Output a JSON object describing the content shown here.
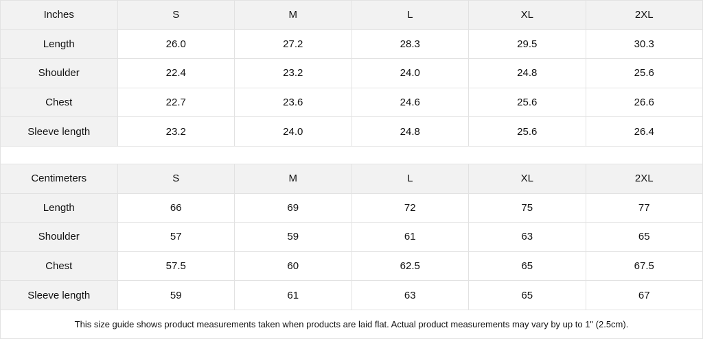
{
  "inches": {
    "header": [
      "Inches",
      "S",
      "M",
      "L",
      "XL",
      "2XL"
    ],
    "rows": [
      [
        "Length",
        "26.0",
        "27.2",
        "28.3",
        "29.5",
        "30.3"
      ],
      [
        "Shoulder",
        "22.4",
        "23.2",
        "24.0",
        "24.8",
        "25.6"
      ],
      [
        "Chest",
        "22.7",
        "23.6",
        "24.6",
        "25.6",
        "26.6"
      ],
      [
        "Sleeve length",
        "23.2",
        "24.0",
        "24.8",
        "25.6",
        "26.4"
      ]
    ]
  },
  "centimeters": {
    "header": [
      "Centimeters",
      "S",
      "M",
      "L",
      "XL",
      "2XL"
    ],
    "rows": [
      [
        "Length",
        "66",
        "69",
        "72",
        "75",
        "77"
      ],
      [
        "Shoulder",
        "57",
        "59",
        "61",
        "63",
        "65"
      ],
      [
        "Chest",
        "57.5",
        "60",
        "62.5",
        "65",
        "67.5"
      ],
      [
        "Sleeve length",
        "59",
        "61",
        "63",
        "65",
        "67"
      ]
    ]
  },
  "footnote": "This size guide shows product measurements taken when products are laid flat.  Actual product measurements may vary by up to 1\" (2.5cm).",
  "colors": {
    "header_bg": "#f2f2f2",
    "border": "#e2e2e2"
  }
}
